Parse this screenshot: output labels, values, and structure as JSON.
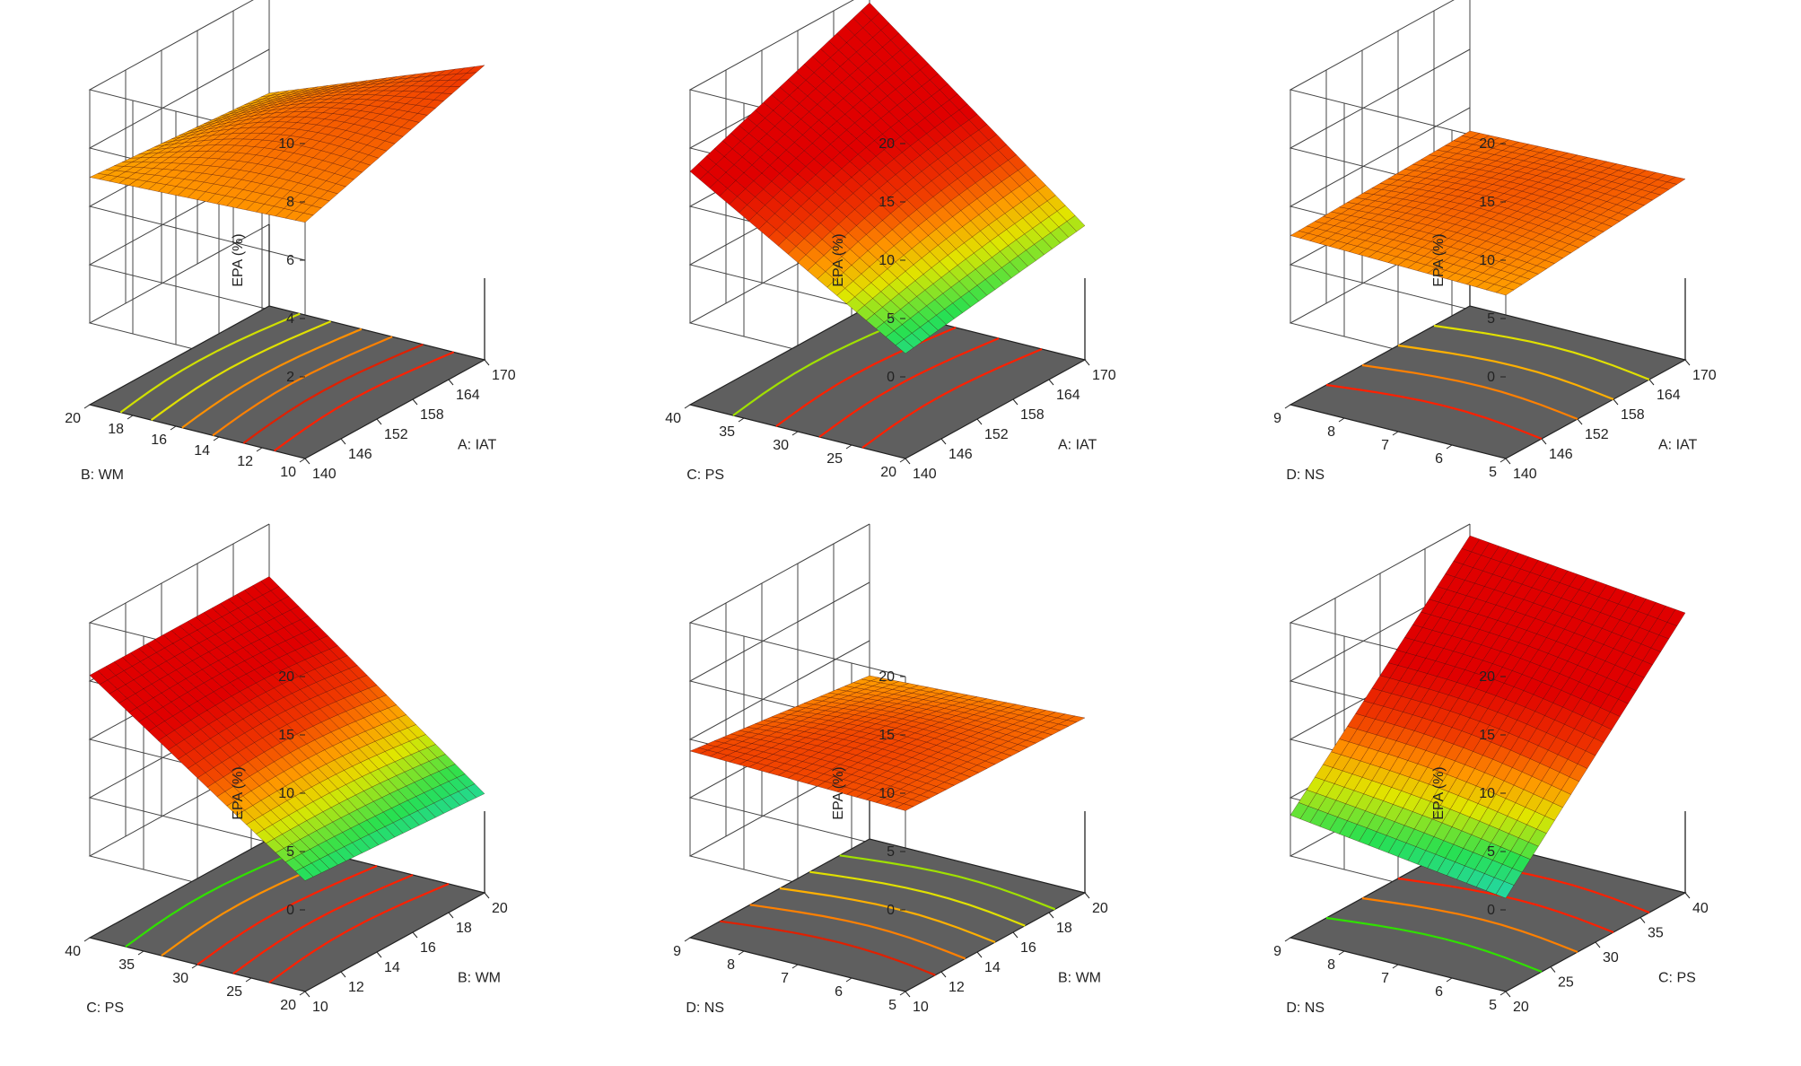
{
  "figure": {
    "z_label": "EPA (%)",
    "colors": {
      "floor": "#5f5f5f",
      "grid": "#444444",
      "mesh": "#3a0000",
      "surface_high": "#e00000",
      "surface_low": "#20d0e0"
    }
  },
  "chart_data": [
    {
      "type": "surface3d",
      "xlabel": "A: IAT",
      "x_range": [
        140,
        170
      ],
      "x_ticks": [
        "140",
        "146",
        "152",
        "158",
        "164",
        "170"
      ],
      "ylabel": "B: WM",
      "y_range": [
        10,
        20
      ],
      "y_ticks": [
        "10",
        "12",
        "14",
        "16",
        "18",
        "20"
      ],
      "zlabel": "EPA (%)",
      "z_range": [
        2,
        10
      ],
      "z_ticks": [
        "2",
        "4",
        "6",
        "8",
        "10"
      ],
      "corners": {
        "x_min_y_min": 7.3,
        "x_max_y_min": 9.3,
        "x_min_y_max": 7.0,
        "x_max_y_max": 6.5
      },
      "contour_colors": [
        "#ff2000",
        "#e02000",
        "#ff8000",
        "#ff9000",
        "#e0e000",
        "#d0e000"
      ]
    },
    {
      "type": "surface3d",
      "xlabel": "A: IAT",
      "x_range": [
        140,
        170
      ],
      "x_ticks": [
        "140",
        "146",
        "152",
        "158",
        "164",
        "170"
      ],
      "ylabel": "C: PS",
      "y_range": [
        20,
        40
      ],
      "y_ticks": [
        "20",
        "25",
        "30",
        "35",
        "40"
      ],
      "zlabel": "EPA (%)",
      "z_range": [
        0,
        20
      ],
      "z_ticks": [
        "0",
        "5",
        "10",
        "15",
        "20"
      ],
      "corners": {
        "x_min_y_min": 2.0,
        "x_max_y_min": 4.5,
        "x_min_y_max": 13.0,
        "x_max_y_max": 19.0
      },
      "contour_colors": [
        "#ff2000",
        "#ff2000",
        "#ff2000",
        "#a0e000"
      ]
    },
    {
      "type": "surface3d",
      "xlabel": "A: IAT",
      "x_range": [
        140,
        170
      ],
      "x_ticks": [
        "140",
        "146",
        "152",
        "158",
        "164",
        "170"
      ],
      "ylabel": "D: NS",
      "y_range": [
        5,
        9
      ],
      "y_ticks": [
        "5",
        "6",
        "7",
        "8",
        "9"
      ],
      "zlabel": "EPA (%)",
      "z_range": [
        0,
        20
      ],
      "z_ticks": [
        "0",
        "5",
        "10",
        "15",
        "20"
      ],
      "corners": {
        "x_min_y_min": 7.0,
        "x_max_y_min": 8.5,
        "x_min_y_max": 7.5,
        "x_max_y_max": 8.0
      },
      "contour_colors": [
        "#ff2000",
        "#ff8000",
        "#ffb000",
        "#e0e000"
      ]
    },
    {
      "type": "surface3d",
      "xlabel": "B: WM",
      "x_range": [
        10,
        20
      ],
      "x_ticks": [
        "10",
        "12",
        "14",
        "16",
        "18",
        "20"
      ],
      "ylabel": "C: PS",
      "y_range": [
        20,
        40
      ],
      "y_ticks": [
        "20",
        "25",
        "30",
        "35",
        "40"
      ],
      "zlabel": "EPA (%)",
      "z_range": [
        0,
        20
      ],
      "z_ticks": [
        "0",
        "5",
        "10",
        "15",
        "20"
      ],
      "corners": {
        "x_min_y_min": 2.5,
        "x_max_y_min": 1.5,
        "x_min_y_max": 15.5,
        "x_max_y_max": 15.5
      },
      "contour_colors": [
        "#ff2000",
        "#ff2000",
        "#ff2000",
        "#ff9000",
        "#30e000"
      ]
    },
    {
      "type": "surface3d",
      "xlabel": "B: WM",
      "x_range": [
        10,
        20
      ],
      "x_ticks": [
        "10",
        "12",
        "14",
        "16",
        "18",
        "20"
      ],
      "ylabel": "D: NS",
      "y_range": [
        5,
        9
      ],
      "y_ticks": [
        "5",
        "6",
        "7",
        "8",
        "9"
      ],
      "zlabel": "EPA (%)",
      "z_range": [
        0,
        20
      ],
      "z_ticks": [
        "0",
        "5",
        "10",
        "15",
        "20"
      ],
      "corners": {
        "x_min_y_min": 8.5,
        "x_max_y_min": 8.0,
        "x_min_y_max": 9.0,
        "x_max_y_max": 7.0
      },
      "contour_colors": [
        "#e02000",
        "#ff8000",
        "#ffb000",
        "#e0e000",
        "#a0e000"
      ]
    },
    {
      "type": "surface3d",
      "xlabel": "C: PS",
      "x_range": [
        20,
        40
      ],
      "x_ticks": [
        "20",
        "25",
        "30",
        "35",
        "40"
      ],
      "ylabel": "D: NS",
      "y_range": [
        5,
        9
      ],
      "y_ticks": [
        "5",
        "6",
        "7",
        "8",
        "9"
      ],
      "zlabel": "EPA (%)",
      "z_range": [
        0,
        20
      ],
      "z_ticks": [
        "0",
        "5",
        "10",
        "15",
        "20"
      ],
      "corners": {
        "x_min_y_min": 1.0,
        "x_max_y_min": 17.0,
        "x_min_y_max": 3.5,
        "x_max_y_max": 19.0
      },
      "contour_colors": [
        "#30e000",
        "#ff8000",
        "#ff2000",
        "#ff2000"
      ]
    }
  ]
}
